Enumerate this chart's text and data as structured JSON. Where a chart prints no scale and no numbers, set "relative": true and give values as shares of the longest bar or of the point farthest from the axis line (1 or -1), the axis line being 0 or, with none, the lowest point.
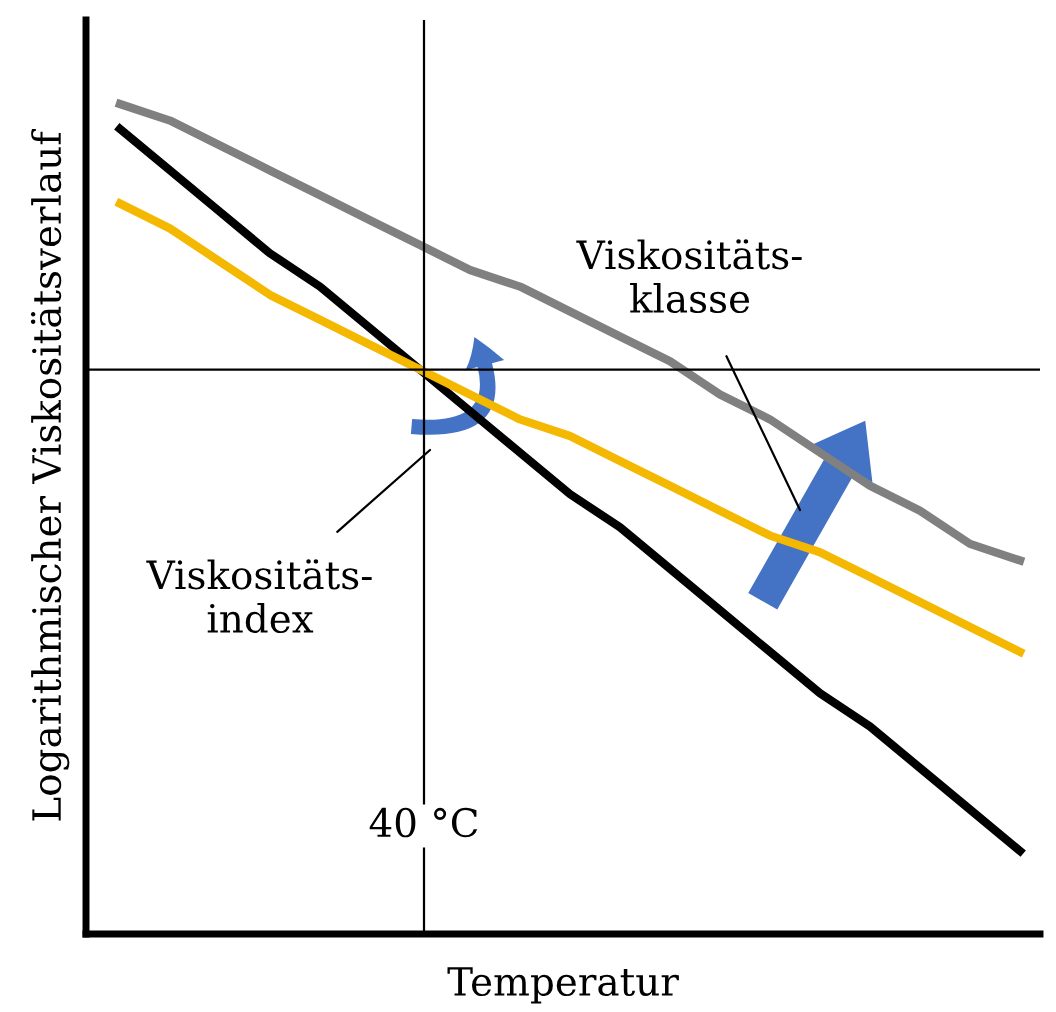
{
  "chart_data": {
    "type": "line",
    "relative": true,
    "xlabel": "Temperatur",
    "ylabel": "Logarithmischer Viskositätsverlauf",
    "categories": [
      null,
      null,
      null,
      null,
      null,
      null,
      null,
      null,
      null,
      null,
      null,
      null,
      null,
      null,
      null,
      null,
      null,
      null,
      null
    ],
    "series": [
      {
        "color": "#000000",
        "values": [
          0.97,
          0.92,
          0.87,
          0.82,
          0.78,
          0.73,
          0.68,
          0.63,
          0.58,
          0.53,
          0.49,
          0.44,
          0.39,
          0.34,
          0.29,
          0.25,
          0.2,
          0.15,
          0.1
        ]
      },
      {
        "color": "#f5b800",
        "values": [
          0.88,
          0.85,
          0.81,
          0.77,
          0.74,
          0.71,
          0.68,
          0.65,
          0.62,
          0.6,
          0.57,
          0.54,
          0.51,
          0.48,
          0.46,
          0.43,
          0.4,
          0.37,
          0.34
        ]
      },
      {
        "color": "#808080",
        "values": [
          1.0,
          0.98,
          0.95,
          0.92,
          0.89,
          0.86,
          0.83,
          0.8,
          0.78,
          0.75,
          0.72,
          0.69,
          0.65,
          0.62,
          0.58,
          0.54,
          0.51,
          0.47,
          0.45
        ]
      }
    ],
    "ref_lines": [
      {
        "axis": "y",
        "value": 0.68,
        "color": "#000000"
      }
    ],
    "annotations": [
      "Viskositäts-\nklasse",
      "Viskositäts-\nindex",
      "40 °C"
    ],
    "legend": false,
    "grid": false,
    "marker": "none",
    "line_style": "solid"
  }
}
